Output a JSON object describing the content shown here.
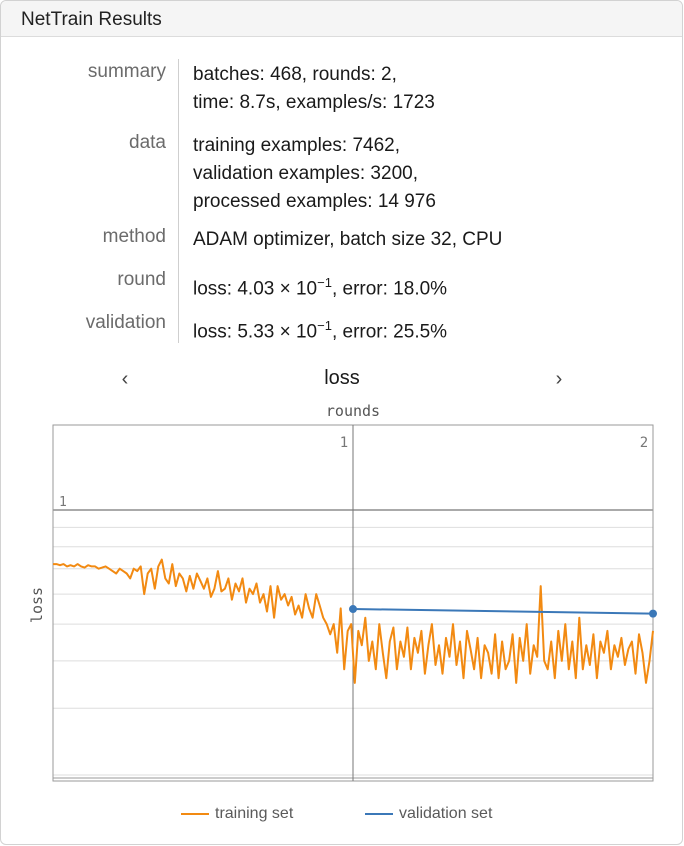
{
  "window": {
    "title": "NetTrain Results"
  },
  "summary": [
    {
      "label": "summary",
      "lines": [
        "batches: 468, rounds: 2,",
        "time: 8.7s, examples/s: 1723"
      ]
    },
    {
      "label": "data",
      "lines": [
        "training examples: 7462,",
        "validation examples: 3200,",
        "processed examples: 14 976"
      ]
    },
    {
      "label": "method",
      "lines": [
        "ADAM optimizer, batch size 32, CPU"
      ]
    },
    {
      "label": "round",
      "prefix": "loss: 4.03 × 10",
      "exponent": "−1",
      "suffix": ", error: 18.0%"
    },
    {
      "label": "validation",
      "prefix": "loss: 5.33 × 10",
      "exponent": "−1",
      "suffix": ", error: 25.5%"
    }
  ],
  "nav": {
    "prev": "‹",
    "next": "›",
    "current": "loss"
  },
  "colors": {
    "training": "#f28a12",
    "validation": "#3b78b8",
    "grid": "#d9d9d9"
  },
  "chart_data": {
    "type": "line",
    "title": "",
    "xlabel": "rounds",
    "ylabel": "loss",
    "x_ticks": [
      1,
      2
    ],
    "y_ticks": [
      "1"
    ],
    "xlim": [
      0,
      2
    ],
    "ylim": [
      0.2,
      1.15
    ],
    "scale_y": "log",
    "legend_position": "bottom",
    "series": [
      {
        "name": "training set",
        "color": "#f28a12",
        "x_range": [
          0,
          2
        ],
        "values": [
          0.72,
          0.72,
          0.715,
          0.72,
          0.71,
          0.715,
          0.71,
          0.72,
          0.71,
          0.705,
          0.715,
          0.71,
          0.71,
          0.7,
          0.705,
          0.71,
          0.7,
          0.69,
          0.68,
          0.7,
          0.69,
          0.68,
          0.66,
          0.7,
          0.69,
          0.71,
          0.6,
          0.68,
          0.7,
          0.62,
          0.71,
          0.74,
          0.66,
          0.64,
          0.72,
          0.63,
          0.68,
          0.66,
          0.61,
          0.67,
          0.62,
          0.68,
          0.65,
          0.62,
          0.66,
          0.59,
          0.62,
          0.69,
          0.61,
          0.62,
          0.66,
          0.58,
          0.64,
          0.61,
          0.66,
          0.57,
          0.62,
          0.6,
          0.64,
          0.57,
          0.6,
          0.54,
          0.63,
          0.52,
          0.63,
          0.58,
          0.6,
          0.56,
          0.59,
          0.53,
          0.56,
          0.52,
          0.6,
          0.55,
          0.52,
          0.6,
          0.56,
          0.52,
          0.5,
          0.47,
          0.5,
          0.42,
          0.55,
          0.38,
          0.48,
          0.5,
          0.35,
          0.48,
          0.44,
          0.52,
          0.4,
          0.45,
          0.38,
          0.5,
          0.42,
          0.36,
          0.45,
          0.49,
          0.38,
          0.45,
          0.41,
          0.49,
          0.38,
          0.46,
          0.42,
          0.48,
          0.37,
          0.44,
          0.5,
          0.39,
          0.44,
          0.37,
          0.46,
          0.41,
          0.5,
          0.39,
          0.45,
          0.36,
          0.48,
          0.43,
          0.38,
          0.46,
          0.36,
          0.44,
          0.42,
          0.37,
          0.47,
          0.36,
          0.45,
          0.38,
          0.4,
          0.47,
          0.35,
          0.46,
          0.4,
          0.5,
          0.37,
          0.44,
          0.41,
          0.63,
          0.4,
          0.38,
          0.45,
          0.36,
          0.48,
          0.4,
          0.5,
          0.38,
          0.45,
          0.36,
          0.52,
          0.38,
          0.44,
          0.39,
          0.47,
          0.36,
          0.45,
          0.42,
          0.48,
          0.38,
          0.44,
          0.41,
          0.46,
          0.39,
          0.43,
          0.45,
          0.37,
          0.47,
          0.42,
          0.35,
          0.4,
          0.48
        ],
        "min_values": [
          0.72,
          0.72,
          0.715,
          0.72,
          0.71,
          0.715,
          0.71,
          0.72,
          0.71,
          0.705,
          0.715,
          0.71,
          0.71,
          0.7,
          0.705,
          0.71,
          0.7,
          0.69,
          0.68,
          0.7,
          0.69,
          0.68,
          0.66,
          0.7,
          0.69,
          0.71,
          0.6,
          0.68,
          0.7,
          0.62,
          0.71,
          0.74,
          0.66,
          0.64,
          0.72,
          0.63,
          0.68,
          0.66,
          0.61,
          0.67,
          0.62,
          0.68,
          0.65,
          0.62,
          0.66,
          0.59,
          0.62,
          0.69,
          0.61,
          0.62,
          0.66,
          0.58,
          0.64,
          0.61,
          0.66,
          0.57,
          0.62,
          0.6,
          0.64,
          0.57,
          0.6,
          0.54,
          0.63,
          0.52,
          0.63,
          0.58,
          0.6,
          0.56,
          0.59,
          0.53,
          0.56,
          0.52,
          0.6,
          0.55,
          0.52,
          0.6,
          0.56,
          0.52,
          0.5,
          0.47,
          0.5,
          0.42,
          0.55,
          0.38,
          0.48,
          0.5,
          0.35,
          0.48,
          0.44,
          0.52,
          0.4,
          0.45,
          0.38,
          0.5,
          0.42,
          0.36,
          0.45,
          0.49,
          0.38,
          0.45,
          0.41,
          0.49,
          0.38,
          0.46,
          0.42,
          0.48,
          0.37,
          0.44,
          0.5,
          0.39,
          0.44,
          0.37,
          0.46,
          0.41,
          0.5,
          0.39,
          0.45,
          0.36,
          0.48,
          0.43,
          0.38,
          0.46,
          0.36,
          0.44,
          0.42,
          0.37,
          0.47,
          0.36,
          0.45,
          0.38,
          0.4,
          0.47,
          0.35,
          0.46,
          0.4,
          0.5,
          0.37,
          0.44,
          0.41,
          0.63,
          0.4,
          0.38,
          0.45,
          0.36,
          0.48,
          0.4,
          0.5,
          0.38,
          0.45,
          0.36,
          0.52,
          0.38,
          0.44,
          0.39,
          0.47,
          0.36,
          0.45,
          0.42,
          0.48,
          0.38,
          0.44,
          0.41,
          0.46,
          0.39,
          0.43,
          0.45,
          0.37,
          0.47,
          0.42,
          0.35,
          0.4,
          0.48
        ]
      },
      {
        "name": "validation set",
        "color": "#3b78b8",
        "x": [
          1,
          2
        ],
        "values": [
          0.548,
          0.533
        ]
      }
    ]
  }
}
